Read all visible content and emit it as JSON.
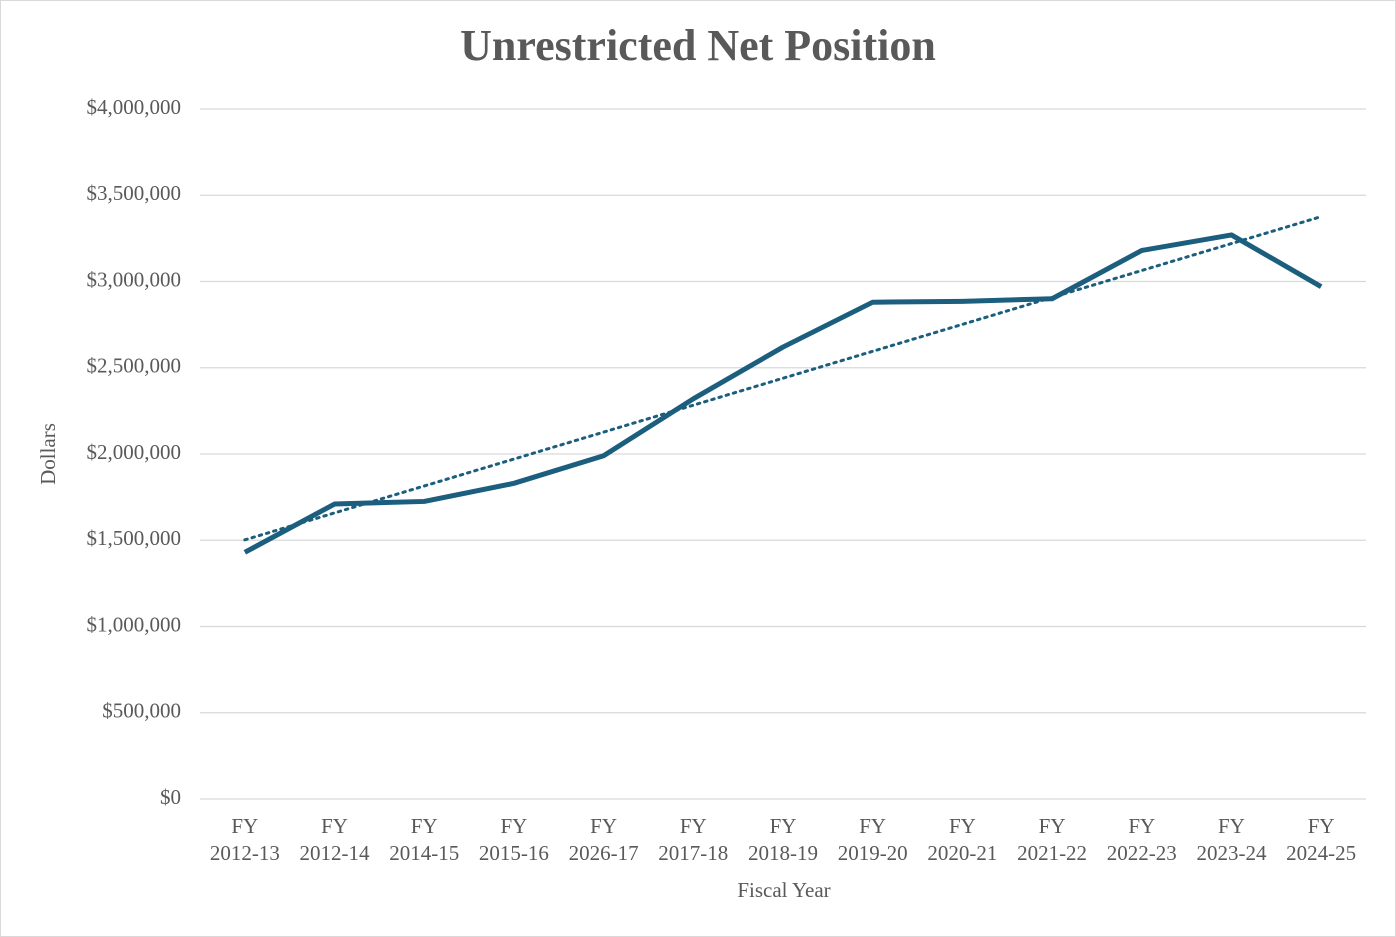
{
  "chart_data": {
    "type": "line",
    "title": "Unrestricted Net Position",
    "x_label": "Fiscal Year",
    "y_label": "Dollars",
    "categories": [
      "FY 2012-13",
      "FY 2012-14",
      "FY 2014-15",
      "FY 2015-16",
      "FY 2026-17",
      "FY 2017-18",
      "FY 2018-19",
      "FY 2019-20",
      "FY 2020-21",
      "FY 2021-22",
      "FY 2022-23",
      "FY 2023-24",
      "FY 2024-25"
    ],
    "series": [
      {
        "color": "#1b5e7e",
        "values": [
          1430000,
          1710000,
          1725000,
          1830000,
          1990000,
          2320000,
          2620000,
          2880000,
          2885000,
          2900000,
          3180000,
          3270000,
          2970000
        ]
      }
    ],
    "trendline": "linear",
    "ylim": [
      0,
      4000000
    ],
    "yticks": [
      {
        "value": 0,
        "label": "$0"
      },
      {
        "value": 500000,
        "label": "$500,000"
      },
      {
        "value": 1000000,
        "label": "$1,000,000"
      },
      {
        "value": 1500000,
        "label": "$1,500,000"
      },
      {
        "value": 2000000,
        "label": "$2,000,000"
      },
      {
        "value": 2500000,
        "label": "$2,500,000"
      },
      {
        "value": 3000000,
        "label": "$3,000,000"
      },
      {
        "value": 3500000,
        "label": "$3,500,000"
      },
      {
        "value": 4000000,
        "label": "$4,000,000"
      }
    ],
    "grid": true
  }
}
